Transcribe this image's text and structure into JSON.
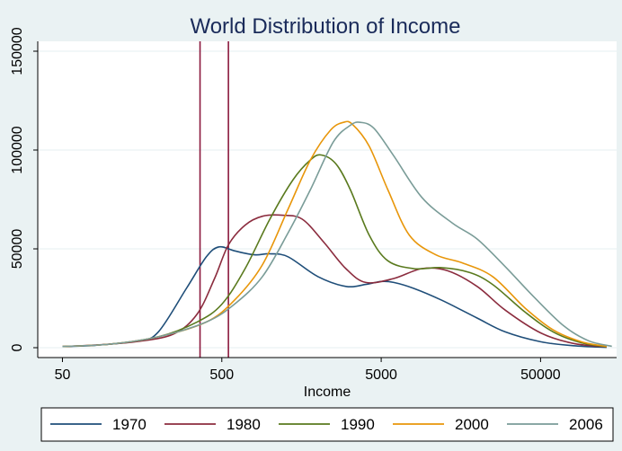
{
  "chart_data": {
    "type": "line",
    "title": "World Distribution of Income",
    "xlabel": "Income",
    "ylabel": "",
    "x_scale": "log10",
    "xlim": [
      35,
      150000
    ],
    "ylim": [
      -5000,
      155000
    ],
    "x_ticks": [
      50,
      500,
      5000,
      50000
    ],
    "x_tick_labels": [
      "50",
      "500",
      "5000",
      "50000"
    ],
    "y_ticks": [
      0,
      50000,
      100000,
      150000
    ],
    "y_tick_labels": [
      "0",
      "50000",
      "100000",
      "150000"
    ],
    "grid": "horizontal",
    "legend_position": "bottom",
    "vertical_lines": [
      {
        "x": 365,
        "color": "#8b1a3e"
      },
      {
        "x": 550,
        "color": "#8b1a3e"
      }
    ],
    "series": [
      {
        "name": "1970",
        "color": "#1f4e79",
        "points": [
          [
            50,
            600
          ],
          [
            80,
            1200
          ],
          [
            150,
            3500
          ],
          [
            200,
            8000
          ],
          [
            300,
            30000
          ],
          [
            400,
            46000
          ],
          [
            480,
            51000
          ],
          [
            600,
            49000
          ],
          [
            800,
            47000
          ],
          [
            1000,
            47500
          ],
          [
            1300,
            46000
          ],
          [
            2000,
            36000
          ],
          [
            3000,
            31000
          ],
          [
            4000,
            32000
          ],
          [
            5000,
            33500
          ],
          [
            6000,
            33000
          ],
          [
            8000,
            30000
          ],
          [
            12000,
            24000
          ],
          [
            20000,
            15000
          ],
          [
            30000,
            8000
          ],
          [
            50000,
            3000
          ],
          [
            80000,
            1000
          ],
          [
            130000,
            200
          ]
        ]
      },
      {
        "name": "1980",
        "color": "#8b2c3e",
        "points": [
          [
            50,
            600
          ],
          [
            80,
            1300
          ],
          [
            150,
            3200
          ],
          [
            250,
            7000
          ],
          [
            350,
            17000
          ],
          [
            450,
            35000
          ],
          [
            550,
            52000
          ],
          [
            700,
            62000
          ],
          [
            900,
            66500
          ],
          [
            1200,
            67000
          ],
          [
            1600,
            65000
          ],
          [
            2200,
            53000
          ],
          [
            3000,
            40000
          ],
          [
            4000,
            33000
          ],
          [
            6000,
            35000
          ],
          [
            9000,
            40000
          ],
          [
            13000,
            39000
          ],
          [
            20000,
            31000
          ],
          [
            30000,
            19000
          ],
          [
            50000,
            7500
          ],
          [
            80000,
            2200
          ],
          [
            130000,
            400
          ]
        ]
      },
      {
        "name": "1990",
        "color": "#5a7a1e",
        "points": [
          [
            50,
            600
          ],
          [
            100,
            1800
          ],
          [
            200,
            5500
          ],
          [
            350,
            13000
          ],
          [
            500,
            22000
          ],
          [
            700,
            40000
          ],
          [
            1000,
            65000
          ],
          [
            1400,
            85000
          ],
          [
            1800,
            95000
          ],
          [
            2100,
            97500
          ],
          [
            2600,
            93000
          ],
          [
            3200,
            80000
          ],
          [
            4200,
            57000
          ],
          [
            5500,
            44000
          ],
          [
            8000,
            40000
          ],
          [
            12000,
            40500
          ],
          [
            18000,
            38000
          ],
          [
            25000,
            32000
          ],
          [
            40000,
            18000
          ],
          [
            60000,
            8000
          ],
          [
            90000,
            2500
          ],
          [
            130000,
            500
          ]
        ]
      },
      {
        "name": "2000",
        "color": "#e8960a",
        "points": [
          [
            50,
            600
          ],
          [
            100,
            1800
          ],
          [
            200,
            5500
          ],
          [
            400,
            13000
          ],
          [
            600,
            24000
          ],
          [
            900,
            42000
          ],
          [
            1300,
            70000
          ],
          [
            1800,
            95000
          ],
          [
            2400,
            110000
          ],
          [
            2900,
            114000
          ],
          [
            3300,
            113000
          ],
          [
            4200,
            102000
          ],
          [
            5500,
            80000
          ],
          [
            7500,
            57000
          ],
          [
            11000,
            47000
          ],
          [
            16000,
            43000
          ],
          [
            25000,
            36000
          ],
          [
            40000,
            20000
          ],
          [
            60000,
            9000
          ],
          [
            90000,
            3000
          ],
          [
            130000,
            600
          ]
        ]
      },
      {
        "name": "2006",
        "color": "#7a9c98",
        "points": [
          [
            50,
            600
          ],
          [
            100,
            1800
          ],
          [
            200,
            5500
          ],
          [
            400,
            13000
          ],
          [
            600,
            22000
          ],
          [
            900,
            36000
          ],
          [
            1300,
            58000
          ],
          [
            1800,
            80000
          ],
          [
            2500,
            104000
          ],
          [
            3200,
            112500
          ],
          [
            3700,
            114000
          ],
          [
            4500,
            111000
          ],
          [
            6000,
            97000
          ],
          [
            9000,
            76000
          ],
          [
            14000,
            63000
          ],
          [
            20000,
            55000
          ],
          [
            30000,
            41000
          ],
          [
            45000,
            26000
          ],
          [
            70000,
            11000
          ],
          [
            100000,
            3500
          ],
          [
            140000,
            700
          ]
        ]
      }
    ]
  }
}
